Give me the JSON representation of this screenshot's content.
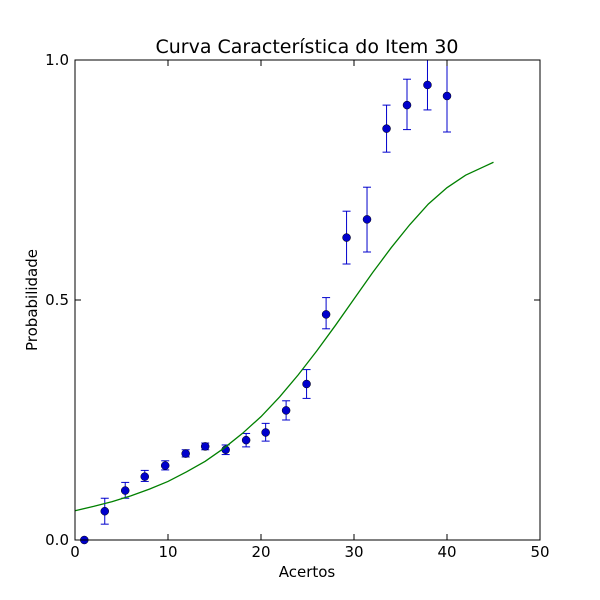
{
  "chart_data": {
    "type": "scatter",
    "title": "Curva Característica do Item 30",
    "xlabel": "Acertos",
    "ylabel": "Probabilidade",
    "xlim": [
      0,
      50
    ],
    "ylim": [
      0.0,
      1.0
    ],
    "x_ticks": [
      {
        "value": 0,
        "label": "0"
      },
      {
        "value": 10,
        "label": "10"
      },
      {
        "value": 20,
        "label": "20"
      },
      {
        "value": 30,
        "label": "30"
      },
      {
        "value": 40,
        "label": "40"
      },
      {
        "value": 50,
        "label": "50"
      }
    ],
    "y_ticks": [
      {
        "value": 0.0,
        "label": "0.0"
      },
      {
        "value": 0.5,
        "label": "0.5"
      },
      {
        "value": 1.0,
        "label": "1.0"
      }
    ],
    "grid": false,
    "series": [
      {
        "kind": "points-with-errorbars",
        "color": "#0000cc",
        "points": [
          {
            "x": 1.0,
            "y": 0.0,
            "ylow": 0.0,
            "yhigh": 0.0
          },
          {
            "x": 3.2,
            "y": 0.06,
            "ylow": 0.033,
            "yhigh": 0.087
          },
          {
            "x": 5.4,
            "y": 0.103,
            "ylow": 0.087,
            "yhigh": 0.12
          },
          {
            "x": 7.5,
            "y": 0.132,
            "ylow": 0.122,
            "yhigh": 0.145
          },
          {
            "x": 9.7,
            "y": 0.155,
            "ylow": 0.146,
            "yhigh": 0.165
          },
          {
            "x": 11.9,
            "y": 0.18,
            "ylow": 0.173,
            "yhigh": 0.188
          },
          {
            "x": 14.0,
            "y": 0.195,
            "ylow": 0.188,
            "yhigh": 0.202
          },
          {
            "x": 16.2,
            "y": 0.188,
            "ylow": 0.178,
            "yhigh": 0.198
          },
          {
            "x": 18.4,
            "y": 0.208,
            "ylow": 0.194,
            "yhigh": 0.222
          },
          {
            "x": 20.5,
            "y": 0.224,
            "ylow": 0.206,
            "yhigh": 0.243
          },
          {
            "x": 22.7,
            "y": 0.27,
            "ylow": 0.25,
            "yhigh": 0.29
          },
          {
            "x": 24.9,
            "y": 0.325,
            "ylow": 0.295,
            "yhigh": 0.355
          },
          {
            "x": 27.0,
            "y": 0.47,
            "ylow": 0.44,
            "yhigh": 0.505
          },
          {
            "x": 29.2,
            "y": 0.63,
            "ylow": 0.575,
            "yhigh": 0.685
          },
          {
            "x": 31.4,
            "y": 0.668,
            "ylow": 0.6,
            "yhigh": 0.735
          },
          {
            "x": 33.5,
            "y": 0.857,
            "ylow": 0.808,
            "yhigh": 0.906
          },
          {
            "x": 35.7,
            "y": 0.906,
            "ylow": 0.855,
            "yhigh": 0.96
          },
          {
            "x": 37.9,
            "y": 0.948,
            "ylow": 0.896,
            "yhigh": 1.0
          },
          {
            "x": 40.0,
            "y": 0.925,
            "ylow": 0.85,
            "yhigh": 1.0
          }
        ]
      },
      {
        "kind": "line",
        "color": "#008000",
        "x": [
          0,
          2,
          4,
          6,
          8,
          10,
          12,
          14,
          16,
          18,
          20,
          22,
          24,
          26,
          28,
          30,
          32,
          34,
          36,
          38,
          40,
          42,
          44,
          45
        ],
        "y": [
          0.061,
          0.07,
          0.08,
          0.092,
          0.106,
          0.122,
          0.142,
          0.164,
          0.191,
          0.222,
          0.257,
          0.298,
          0.344,
          0.394,
          0.447,
          0.502,
          0.557,
          0.609,
          0.657,
          0.7,
          0.734,
          0.76,
          0.778,
          0.787
        ]
      }
    ]
  }
}
